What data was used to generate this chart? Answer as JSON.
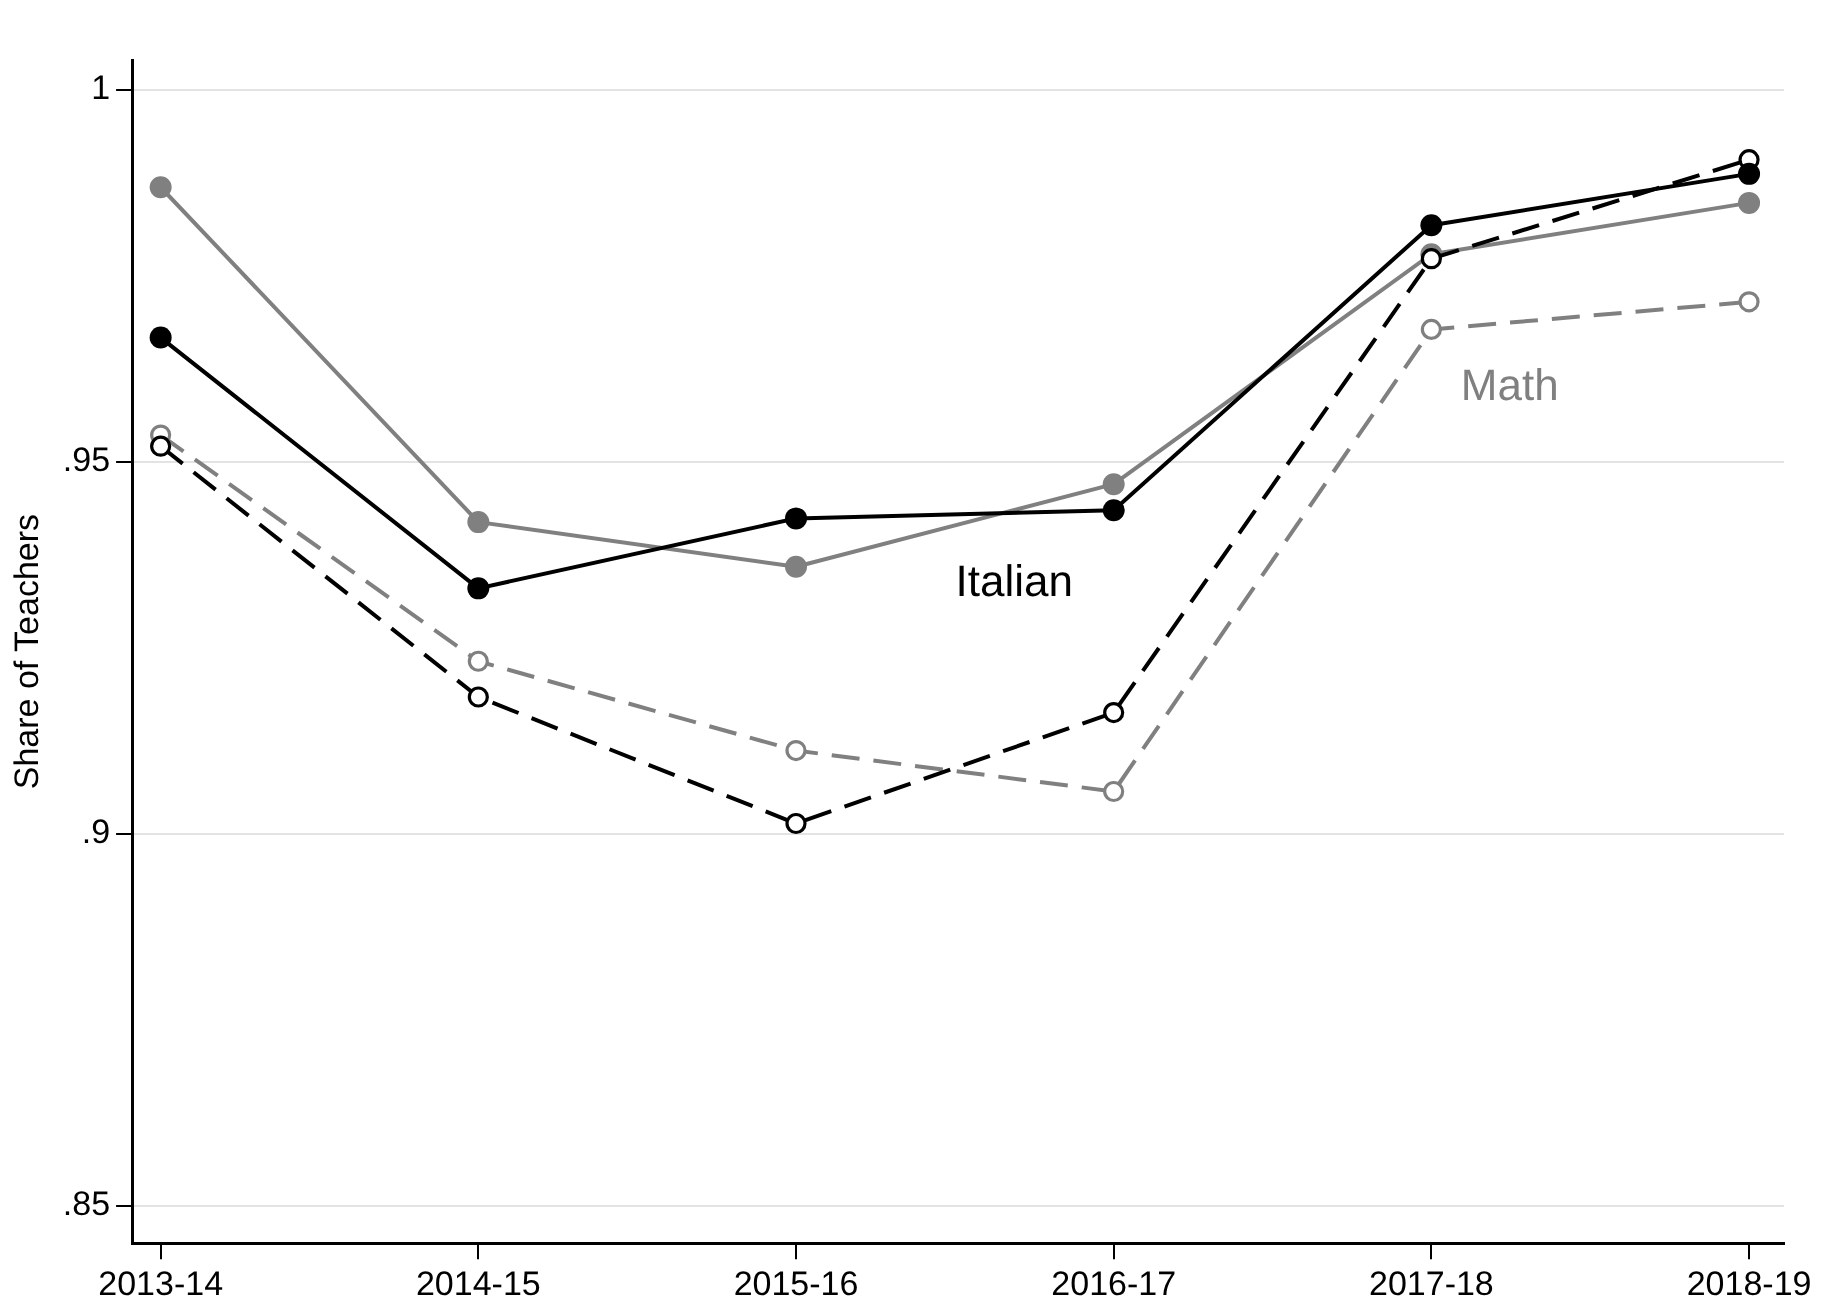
{
  "chart_data": {
    "type": "line",
    "ylabel": "Share of Teachers",
    "categories": [
      "2013-14",
      "2014-15",
      "2015-16",
      "2016-17",
      "2017-18",
      "2018-19"
    ],
    "series": [
      {
        "color": "#000000",
        "line_style": "solid",
        "values": [
          0.9667,
          0.933,
          0.9424,
          0.9435,
          0.9818,
          0.9887
        ]
      },
      {
        "color": "#000000",
        "line_style": "dashed",
        "values": [
          0.9521,
          0.9184,
          0.9014,
          0.9163,
          0.9773,
          0.9906
        ]
      },
      {
        "color": "#808080",
        "line_style": "solid",
        "values": [
          0.9869,
          0.9419,
          0.9359,
          0.947,
          0.9779,
          0.9848
        ]
      },
      {
        "color": "#808080",
        "line_style": "dashed",
        "values": [
          0.9536,
          0.9232,
          0.9112,
          0.9057,
          0.9678,
          0.9715
        ]
      }
    ],
    "ylim": [
      0.845,
      1.004
    ],
    "yticks": [
      {
        "value": 0.85,
        "label": ".85"
      },
      {
        "value": 0.9,
        "label": ".9"
      },
      {
        "value": 0.95,
        "label": ".95"
      },
      1
    ],
    "grid": "y",
    "legend": false,
    "marker": "circle",
    "annotations": [
      "Italian",
      "Math"
    ]
  }
}
